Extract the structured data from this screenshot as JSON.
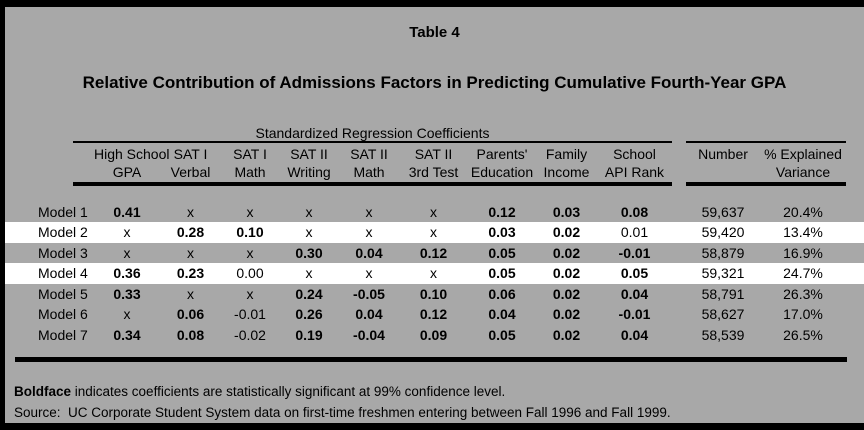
{
  "colors": {
    "background": "#a8a8a8",
    "border": "#000000",
    "highlight_row": "#ffffff",
    "text": "#000000"
  },
  "titles": {
    "table_label": "Table 4",
    "heading": "Relative Contribution of Admissions Factors in Predicting Cumulative Fourth-Year GPA"
  },
  "table": {
    "spanner": "Standardized Regression Coefficients",
    "columns": [
      {
        "l1": "High School",
        "l2": "GPA"
      },
      {
        "l1": "SAT I",
        "l2": "Verbal"
      },
      {
        "l1": "SAT I",
        "l2": "Math"
      },
      {
        "l1": "SAT II",
        "l2": "Writing"
      },
      {
        "l1": "SAT II",
        "l2": "Math"
      },
      {
        "l1": "SAT II",
        "l2": "3rd Test"
      },
      {
        "l1": "Parents'",
        "l2": "Education"
      },
      {
        "l1": "Family",
        "l2": "Income"
      },
      {
        "l1": "School",
        "l2": "API Rank"
      },
      {
        "l1": "",
        "l2": "Number"
      },
      {
        "l1": "% Explained",
        "l2": "Variance"
      }
    ],
    "rows": [
      {
        "label": "Model 1",
        "highlight": false,
        "cells": [
          {
            "v": "0.41",
            "b": true
          },
          {
            "v": "x",
            "b": false
          },
          {
            "v": "x",
            "b": false
          },
          {
            "v": "x",
            "b": false
          },
          {
            "v": "x",
            "b": false
          },
          {
            "v": "x",
            "b": false
          },
          {
            "v": "0.12",
            "b": true
          },
          {
            "v": "0.03",
            "b": true
          },
          {
            "v": "0.08",
            "b": true
          },
          {
            "v": "59,637",
            "b": false
          },
          {
            "v": "20.4%",
            "b": false
          }
        ]
      },
      {
        "label": "Model 2",
        "highlight": true,
        "cells": [
          {
            "v": "x",
            "b": false
          },
          {
            "v": "0.28",
            "b": true
          },
          {
            "v": "0.10",
            "b": true
          },
          {
            "v": "x",
            "b": false
          },
          {
            "v": "x",
            "b": false
          },
          {
            "v": "x",
            "b": false
          },
          {
            "v": "0.03",
            "b": true
          },
          {
            "v": "0.02",
            "b": true
          },
          {
            "v": "0.01",
            "b": false
          },
          {
            "v": "59,420",
            "b": false
          },
          {
            "v": "13.4%",
            "b": false
          }
        ]
      },
      {
        "label": "Model 3",
        "highlight": false,
        "cells": [
          {
            "v": "x",
            "b": false
          },
          {
            "v": "x",
            "b": false
          },
          {
            "v": "x",
            "b": false
          },
          {
            "v": "0.30",
            "b": true
          },
          {
            "v": "0.04",
            "b": true
          },
          {
            "v": "0.12",
            "b": true
          },
          {
            "v": "0.05",
            "b": true
          },
          {
            "v": "0.02",
            "b": true
          },
          {
            "v": "-0.01",
            "b": true
          },
          {
            "v": "58,879",
            "b": false
          },
          {
            "v": "16.9%",
            "b": false
          }
        ]
      },
      {
        "label": "Model 4",
        "highlight": true,
        "cells": [
          {
            "v": "0.36",
            "b": true
          },
          {
            "v": "0.23",
            "b": true
          },
          {
            "v": "0.00",
            "b": false
          },
          {
            "v": "x",
            "b": false
          },
          {
            "v": "x",
            "b": false
          },
          {
            "v": "x",
            "b": false
          },
          {
            "v": "0.05",
            "b": true
          },
          {
            "v": "0.02",
            "b": true
          },
          {
            "v": "0.05",
            "b": true
          },
          {
            "v": "59,321",
            "b": false
          },
          {
            "v": "24.7%",
            "b": false
          }
        ]
      },
      {
        "label": "Model 5",
        "highlight": false,
        "cells": [
          {
            "v": "0.33",
            "b": true
          },
          {
            "v": "x",
            "b": false
          },
          {
            "v": "x",
            "b": false
          },
          {
            "v": "0.24",
            "b": true
          },
          {
            "v": "-0.05",
            "b": true
          },
          {
            "v": "0.10",
            "b": true
          },
          {
            "v": "0.06",
            "b": true
          },
          {
            "v": "0.02",
            "b": true
          },
          {
            "v": "0.04",
            "b": true
          },
          {
            "v": "58,791",
            "b": false
          },
          {
            "v": "26.3%",
            "b": false
          }
        ]
      },
      {
        "label": "Model 6",
        "highlight": false,
        "cells": [
          {
            "v": "x",
            "b": false
          },
          {
            "v": "0.06",
            "b": true
          },
          {
            "v": "-0.01",
            "b": false
          },
          {
            "v": "0.26",
            "b": true
          },
          {
            "v": "0.04",
            "b": true
          },
          {
            "v": "0.12",
            "b": true
          },
          {
            "v": "0.04",
            "b": true
          },
          {
            "v": "0.02",
            "b": true
          },
          {
            "v": "-0.01",
            "b": true
          },
          {
            "v": "58,627",
            "b": false
          },
          {
            "v": "17.0%",
            "b": false
          }
        ]
      },
      {
        "label": "Model 7",
        "highlight": false,
        "cells": [
          {
            "v": "0.34",
            "b": true
          },
          {
            "v": "0.08",
            "b": true
          },
          {
            "v": "-0.02",
            "b": false
          },
          {
            "v": "0.19",
            "b": true
          },
          {
            "v": "-0.04",
            "b": true
          },
          {
            "v": "0.09",
            "b": true
          },
          {
            "v": "0.05",
            "b": true
          },
          {
            "v": "0.02",
            "b": true
          },
          {
            "v": "0.04",
            "b": true
          },
          {
            "v": "58,539",
            "b": false
          },
          {
            "v": "26.5%",
            "b": false
          }
        ]
      }
    ]
  },
  "notes": {
    "bold_word": "Boldface",
    "note_rest": " indicates coefficients are statistically significant at 99% confidence level.",
    "source": "Source:  UC Corporate Student System data on first-time freshmen entering between Fall 1996 and Fall 1999."
  }
}
